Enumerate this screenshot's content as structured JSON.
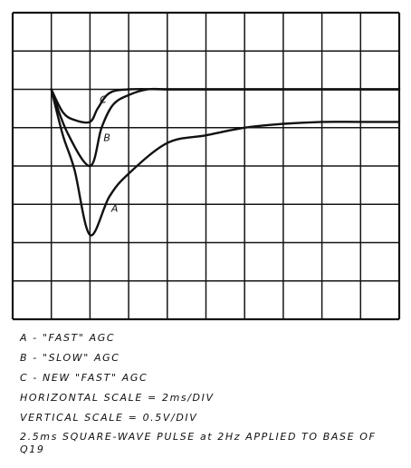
{
  "chart_data": {
    "type": "line",
    "title": "",
    "xlabel": "",
    "ylabel": "",
    "grid": true,
    "x_divisions": 10,
    "y_divisions": 8,
    "series": [
      {
        "name": "A",
        "x": [
          0,
          0.3,
          0.6,
          1.0,
          1.5,
          2.0,
          3.0,
          4.0,
          5.0,
          6.0,
          7.0,
          8.0,
          9.0
        ],
        "y": [
          6.0,
          4.8,
          3.9,
          2.2,
          3.2,
          3.8,
          4.6,
          4.8,
          5.0,
          5.1,
          5.15,
          5.15,
          5.15
        ]
      },
      {
        "name": "B",
        "x": [
          0,
          0.4,
          1.0,
          1.3,
          1.6,
          2.0,
          2.5,
          3.0,
          4.0,
          5.0,
          6.0,
          7.0,
          8.0,
          9.0
        ],
        "y": [
          6.0,
          4.9,
          4.0,
          5.0,
          5.6,
          5.85,
          6.0,
          6.0,
          6.0,
          6.0,
          6.0,
          6.0,
          6.0,
          6.0
        ]
      },
      {
        "name": "C",
        "x": [
          0,
          0.3,
          0.6,
          1.0,
          1.2,
          1.5,
          2.0,
          3.0,
          4.0,
          5.0,
          6.0,
          7.0,
          8.0,
          9.0
        ],
        "y": [
          6.0,
          5.4,
          5.2,
          5.15,
          5.5,
          5.9,
          6.0,
          6.0,
          6.0,
          6.0,
          6.0,
          6.0,
          6.0,
          6.0
        ]
      }
    ],
    "curve_labels": [
      {
        "text": "A",
        "x": 1.55,
        "y": 2.8
      },
      {
        "text": "B",
        "x": 1.35,
        "y": 4.65
      },
      {
        "text": "C",
        "x": 1.25,
        "y": 5.65
      }
    ]
  },
  "legend": {
    "line_a": "A -  \"FAST\" AGC",
    "line_b": "B -  \"SLOW\" AGC",
    "line_c": "C -  NEW \"FAST\" AGC",
    "horizontal_scale": "HORIZONTAL SCALE = 2ms/DIV",
    "vertical_scale": "VERTICAL SCALE = 0.5V/DIV",
    "pulse_note": "2.5ms SQUARE-WAVE PULSE at 2Hz APPLIED TO BASE OF Q19"
  }
}
